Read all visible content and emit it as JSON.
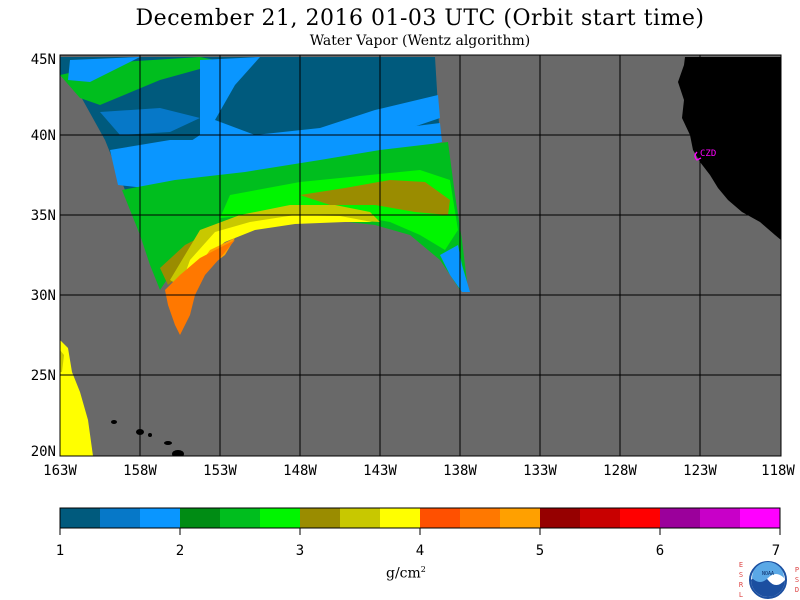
{
  "title": "December 21, 2016  01-03 UTC  (Orbit start time)",
  "subtitle": "Water Vapor (Wentz algorithm)",
  "station_label": "CZD",
  "lat_labels": [
    "45N",
    "40N",
    "35N",
    "30N",
    "25N",
    "20N"
  ],
  "lon_labels": [
    "163W",
    "158W",
    "153W",
    "148W",
    "143W",
    "138W",
    "133W",
    "128W",
    "123W",
    "118W"
  ],
  "colorbar": {
    "tick_labels": [
      "1",
      "2",
      "3",
      "4",
      "5",
      "6",
      "7"
    ],
    "unit_text": "g/cm",
    "unit_sup": "2",
    "colors": [
      "#005a7d",
      "#0678c8",
      "#0a96ff",
      "#008c14",
      "#00be1e",
      "#00f500",
      "#9a8c00",
      "#c8c800",
      "#ffff00",
      "#ff5000",
      "#ff7800",
      "#ffa000",
      "#960000",
      "#c80000",
      "#ff0000",
      "#9b009b",
      "#c800c8",
      "#ff00ff"
    ]
  },
  "logo": {
    "left_letters": [
      "E",
      "S",
      "R",
      "L"
    ],
    "right_letters": [
      "P",
      "S",
      "D"
    ],
    "badge_text": "NOAA"
  }
}
